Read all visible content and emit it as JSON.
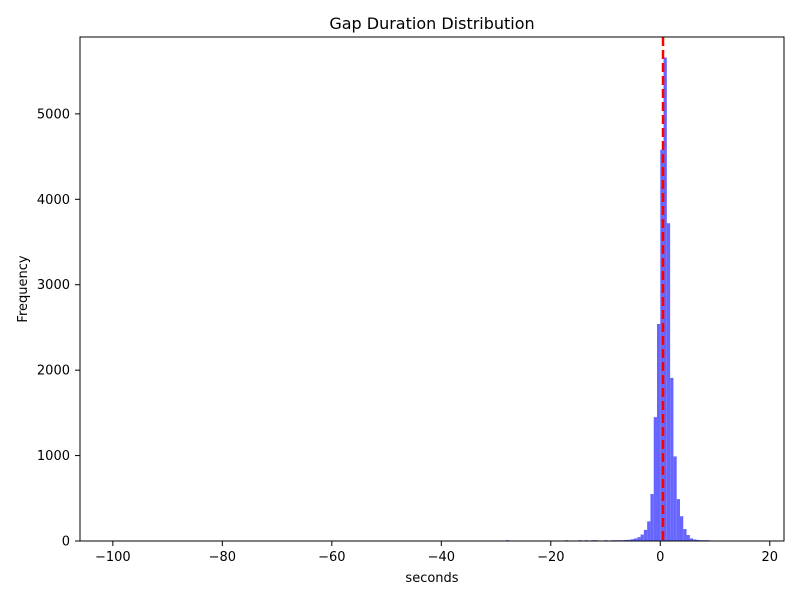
{
  "chart_data": {
    "type": "bar",
    "title": "Gap Duration Distribution",
    "xlabel": "seconds",
    "ylabel": "Frequency",
    "xlim": [
      -106,
      22.6
    ],
    "ylim": [
      0,
      5900
    ],
    "xticks": [
      -100,
      -80,
      -60,
      -40,
      -20,
      0,
      20
    ],
    "xtick_labels": [
      "−100",
      "−80",
      "−60",
      "−40",
      "−20",
      "0",
      "20"
    ],
    "yticks": [
      0,
      1000,
      2000,
      3000,
      4000,
      5000
    ],
    "ytick_labels": [
      "0",
      "1000",
      "2000",
      "3000",
      "4000",
      "5000"
    ],
    "bin_width": 0.6,
    "bars_color": "#6666ff",
    "reference_line": {
      "x": 0.5,
      "color": "#ff0000",
      "style": "dashed"
    },
    "bins": [
      {
        "x": -28.2,
        "count": 8
      },
      {
        "x": -17.4,
        "count": 4
      },
      {
        "x": -15.0,
        "count": 6
      },
      {
        "x": -13.8,
        "count": 5
      },
      {
        "x": -12.6,
        "count": 6
      },
      {
        "x": -12.0,
        "count": 5
      },
      {
        "x": -10.2,
        "count": 5
      },
      {
        "x": -9.0,
        "count": 6
      },
      {
        "x": -8.4,
        "count": 8
      },
      {
        "x": -7.8,
        "count": 8
      },
      {
        "x": -7.2,
        "count": 10
      },
      {
        "x": -6.6,
        "count": 12
      },
      {
        "x": -6.0,
        "count": 14
      },
      {
        "x": -5.4,
        "count": 20
      },
      {
        "x": -4.8,
        "count": 30
      },
      {
        "x": -4.2,
        "count": 45
      },
      {
        "x": -3.6,
        "count": 75
      },
      {
        "x": -3.0,
        "count": 130
      },
      {
        "x": -2.4,
        "count": 230
      },
      {
        "x": -1.8,
        "count": 550
      },
      {
        "x": -1.2,
        "count": 1450
      },
      {
        "x": -0.6,
        "count": 2540
      },
      {
        "x": 0.0,
        "count": 4580
      },
      {
        "x": 0.6,
        "count": 5660
      },
      {
        "x": 1.2,
        "count": 3720
      },
      {
        "x": 1.8,
        "count": 1910
      },
      {
        "x": 2.4,
        "count": 990
      },
      {
        "x": 3.0,
        "count": 490
      },
      {
        "x": 3.6,
        "count": 290
      },
      {
        "x": 4.2,
        "count": 140
      },
      {
        "x": 4.8,
        "count": 70
      },
      {
        "x": 5.4,
        "count": 30
      },
      {
        "x": 6.0,
        "count": 18
      },
      {
        "x": 6.6,
        "count": 12
      },
      {
        "x": 7.2,
        "count": 9
      },
      {
        "x": 7.8,
        "count": 8
      },
      {
        "x": 8.4,
        "count": 5
      }
    ]
  }
}
